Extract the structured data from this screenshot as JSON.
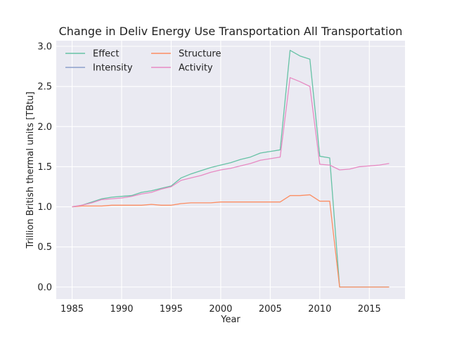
{
  "chart_data": {
    "type": "line",
    "title": "Change in Deliv Energy Use Transportation All Transportation",
    "xlabel": "Year",
    "ylabel": "Trillion British thermal units [TBtu]",
    "xlim": [
      1983.4,
      2018.6
    ],
    "ylim": [
      -0.15,
      3.07
    ],
    "xticks": [
      1985,
      1990,
      1995,
      2000,
      2005,
      2010,
      2015
    ],
    "yticks": [
      0.0,
      0.5,
      1.0,
      1.5,
      2.0,
      2.5,
      3.0
    ],
    "ytick_labels": [
      "0.0",
      "0.5",
      "1.0",
      "1.5",
      "2.0",
      "2.5",
      "3.0"
    ],
    "grid": true,
    "legend": {
      "position": "top-left",
      "columns": 2
    },
    "x": [
      1985,
      1986,
      1987,
      1988,
      1989,
      1990,
      1991,
      1992,
      1993,
      1994,
      1995,
      1996,
      1997,
      1998,
      1999,
      2000,
      2001,
      2002,
      2003,
      2004,
      2005,
      2006,
      2007,
      2008,
      2009,
      2010,
      2011,
      2012,
      2013,
      2014,
      2015,
      2016,
      2017
    ],
    "series": [
      {
        "name": "Effect",
        "color": "#66c2a5",
        "values": [
          1.0,
          1.02,
          1.06,
          1.1,
          1.12,
          1.13,
          1.14,
          1.18,
          1.2,
          1.23,
          1.26,
          1.36,
          1.41,
          1.45,
          1.49,
          1.52,
          1.55,
          1.59,
          1.62,
          1.67,
          1.69,
          1.71,
          2.95,
          2.88,
          2.84,
          1.63,
          1.61,
          0.0,
          0.0,
          0.0,
          0.0,
          0.0,
          0.0
        ]
      },
      {
        "name": "Structure",
        "color": "#fc8d62",
        "values": [
          1.0,
          1.01,
          1.01,
          1.01,
          1.02,
          1.02,
          1.02,
          1.02,
          1.03,
          1.02,
          1.02,
          1.04,
          1.05,
          1.05,
          1.05,
          1.06,
          1.06,
          1.06,
          1.06,
          1.06,
          1.06,
          1.06,
          1.14,
          1.14,
          1.15,
          1.07,
          1.07,
          0.0,
          0.0,
          0.0,
          0.0,
          0.0,
          0.0
        ]
      },
      {
        "name": "Intensity",
        "color": "#8da0cb",
        "values": [
          null,
          null,
          null,
          null,
          null,
          null,
          null,
          null,
          null,
          null,
          null,
          null,
          null,
          null,
          null,
          null,
          null,
          null,
          null,
          null,
          null,
          null,
          null,
          null,
          null,
          null,
          null,
          null,
          null,
          null,
          null,
          null,
          null
        ]
      },
      {
        "name": "Activity",
        "color": "#e78ac3",
        "values": [
          1.0,
          1.02,
          1.05,
          1.09,
          1.1,
          1.11,
          1.13,
          1.16,
          1.18,
          1.22,
          1.25,
          1.33,
          1.36,
          1.39,
          1.43,
          1.46,
          1.48,
          1.51,
          1.54,
          1.58,
          1.6,
          1.62,
          2.61,
          2.56,
          2.5,
          1.53,
          1.52,
          1.46,
          1.47,
          1.5,
          1.51,
          1.52,
          1.54
        ]
      }
    ]
  }
}
